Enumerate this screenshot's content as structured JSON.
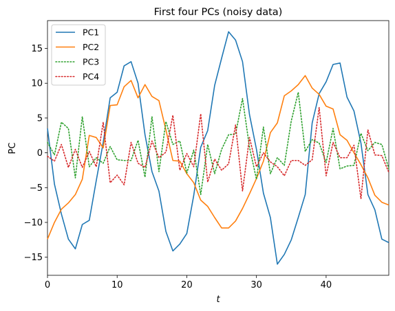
{
  "chart_data": {
    "type": "line",
    "title": "First four PCs (noisy data)",
    "xlabel": "t",
    "ylabel": "PC",
    "xlim": [
      0,
      49
    ],
    "ylim": [
      -17.6,
      19.0
    ],
    "xticks": [
      0,
      10,
      20,
      30,
      40
    ],
    "yticks": [
      -15,
      -10,
      -5,
      0,
      5,
      10,
      15
    ],
    "grid": false,
    "legend_position": "upper left",
    "x": [
      0,
      1,
      2,
      3,
      4,
      5,
      6,
      7,
      8,
      9,
      10,
      11,
      12,
      13,
      14,
      15,
      16,
      17,
      18,
      19,
      20,
      21,
      22,
      23,
      24,
      25,
      26,
      27,
      28,
      29,
      30,
      31,
      32,
      33,
      34,
      35,
      36,
      37,
      38,
      39,
      40,
      41,
      42,
      43,
      44,
      45,
      46,
      47,
      48,
      49
    ],
    "series": [
      {
        "name": "PC1",
        "color": "#1f77b4",
        "style": "solid",
        "values": [
          3.5,
          -4.5,
          -8.8,
          -12.4,
          -13.8,
          -10.3,
          -9.7,
          -4.0,
          1.5,
          7.9,
          8.7,
          12.5,
          13.1,
          10.0,
          2.6,
          -2.7,
          -5.5,
          -11.3,
          -14.1,
          -13.1,
          -11.6,
          -6.1,
          0.8,
          3.2,
          9.7,
          13.6,
          17.4,
          16.2,
          13.1,
          5.5,
          0.5,
          -5.8,
          -9.3,
          -16.0,
          -14.6,
          -12.5,
          -9.3,
          -6.0,
          4.3,
          8.5,
          10.2,
          12.7,
          12.9,
          8.0,
          6.0,
          1.4,
          -6.0,
          -8.2,
          -12.4,
          -12.9
        ]
      },
      {
        "name": "PC2",
        "color": "#ff7f0e",
        "style": "solid",
        "values": [
          -12.4,
          -10.0,
          -8.1,
          -7.2,
          -6.0,
          -3.8,
          2.5,
          2.2,
          0.7,
          6.8,
          6.9,
          9.5,
          10.4,
          7.9,
          9.8,
          8.1,
          7.5,
          3.3,
          -1.1,
          -1.2,
          -3.0,
          -4.3,
          -6.8,
          -7.7,
          -9.3,
          -10.8,
          -10.8,
          -9.8,
          -8.0,
          -5.9,
          -3.7,
          -1.2,
          2.9,
          4.3,
          8.2,
          8.9,
          9.8,
          11.1,
          9.3,
          8.4,
          6.7,
          6.3,
          2.6,
          1.8,
          0.0,
          -1.7,
          -3.6,
          -6.1,
          -7.1,
          -7.5
        ]
      },
      {
        "name": "PC3",
        "color": "#2ca02c",
        "style": "dotted",
        "values": [
          1.5,
          -0.3,
          4.4,
          3.5,
          -3.6,
          5.2,
          -2.0,
          -0.7,
          -1.5,
          0.9,
          -1.0,
          -1.1,
          -1.1,
          1.8,
          -3.5,
          5.2,
          -2.7,
          4.5,
          1.2,
          1.7,
          -2.9,
          0.4,
          -6.0,
          1.2,
          -3.0,
          0.5,
          2.6,
          2.7,
          7.8,
          0.8,
          -3.8,
          3.7,
          -3.0,
          -0.7,
          -1.8,
          4.6,
          8.7,
          0.2,
          1.9,
          1.4,
          -1.4,
          3.5,
          -2.3,
          -1.9,
          -1.8,
          2.8,
          0.3,
          1.5,
          1.2,
          -2.3
        ]
      },
      {
        "name": "PC4",
        "color": "#d62728",
        "style": "dotted",
        "values": [
          -0.5,
          -1.2,
          1.2,
          -2.1,
          0.5,
          -2.1,
          0.2,
          -2.0,
          4.4,
          -4.3,
          -3.2,
          -4.6,
          1.5,
          -1.5,
          -2.1,
          1.7,
          -0.7,
          0.1,
          5.4,
          -2.5,
          -0.1,
          -2.0,
          5.6,
          -4.2,
          -0.9,
          -2.5,
          -1.6,
          4.0,
          -5.5,
          2.2,
          -2.0,
          0.0,
          -1.3,
          -2.0,
          -3.3,
          -1.1,
          -1.1,
          -1.8,
          -1.0,
          6.5,
          -3.3,
          1.5,
          -0.7,
          -0.7,
          1.1,
          -6.6,
          3.3,
          -0.3,
          -0.4,
          -2.8
        ]
      }
    ]
  }
}
